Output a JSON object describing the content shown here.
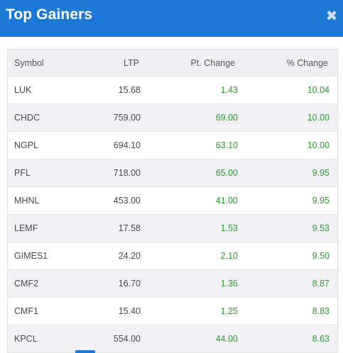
{
  "modal": {
    "title": "Top Gainers",
    "close_icon": "close-icon",
    "close_glyph": "✖"
  },
  "table": {
    "headers": [
      "Symbol",
      "LTP",
      "Pt. Change",
      "% Change"
    ],
    "rows": [
      {
        "symbol": "LUK",
        "ltp": "15.68",
        "pt_change": "1.43",
        "pct_change": "10.04"
      },
      {
        "symbol": "CHDC",
        "ltp": "759.00",
        "pt_change": "69.00",
        "pct_change": "10.00"
      },
      {
        "symbol": "NGPL",
        "ltp": "694.10",
        "pt_change": "63.10",
        "pct_change": "10.00"
      },
      {
        "symbol": "PFL",
        "ltp": "718.00",
        "pt_change": "65.00",
        "pct_change": "9.95"
      },
      {
        "symbol": "MHNL",
        "ltp": "453.00",
        "pt_change": "41.00",
        "pct_change": "9.95"
      },
      {
        "symbol": "LEMF",
        "ltp": "17.58",
        "pt_change": "1.53",
        "pct_change": "9.53"
      },
      {
        "symbol": "GIMES1",
        "ltp": "24.20",
        "pt_change": "2.10",
        "pct_change": "9.50"
      },
      {
        "symbol": "CMF2",
        "ltp": "16.70",
        "pt_change": "1.36",
        "pct_change": "8.87"
      },
      {
        "symbol": "CMF1",
        "ltp": "15.40",
        "pt_change": "1.25",
        "pct_change": "8.83"
      },
      {
        "symbol": "KPCL",
        "ltp": "554.00",
        "pt_change": "44.00",
        "pct_change": "8.63"
      }
    ]
  },
  "colors": {
    "header_bg": "#1c7ad6",
    "positive": "#2e9b2e",
    "row_alt": "#f1f2f6"
  }
}
